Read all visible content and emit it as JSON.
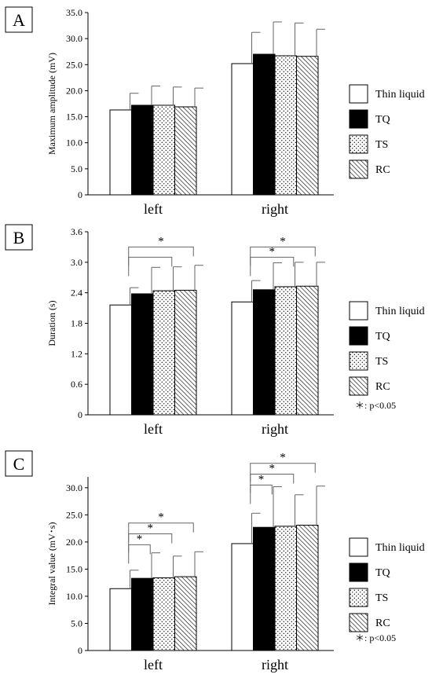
{
  "legend_patterns": {
    "Thin liquid": "white",
    "TQ": "black",
    "TS": "dots",
    "RC": "hatch"
  },
  "chart_data": [
    {
      "type": "bar",
      "panel_label": "A",
      "ylabel": "Maximum amplitude  (mV)",
      "categories": [
        "left",
        "right"
      ],
      "ylim": [
        0,
        35
      ],
      "yticks": [
        "0",
        "5.0",
        "10.0",
        "15.0",
        "20.0",
        "25.0",
        "30.0",
        "35.0"
      ],
      "yticks_values": [
        0,
        5,
        10,
        15,
        20,
        25,
        30,
        35
      ],
      "series": [
        {
          "name": "Thin liquid",
          "values": [
            16.3,
            25.2
          ],
          "errors": [
            3.2,
            6.0
          ]
        },
        {
          "name": "TQ",
          "values": [
            17.2,
            27.0
          ],
          "errors": [
            3.7,
            6.2
          ]
        },
        {
          "name": "TS",
          "values": [
            17.2,
            26.7
          ],
          "errors": [
            3.5,
            6.3
          ]
        },
        {
          "name": "RC",
          "values": [
            16.9,
            26.6
          ],
          "errors": [
            3.6,
            5.2
          ]
        }
      ],
      "legend": [
        "Thin liquid",
        "TQ",
        "TS",
        "RC"
      ],
      "legend_placement": "right",
      "significance": [],
      "note": ""
    },
    {
      "type": "bar",
      "panel_label": "B",
      "ylabel": "Duration (s)",
      "categories": [
        "left",
        "right"
      ],
      "ylim": [
        0,
        3.6
      ],
      "yticks": [
        "0",
        "0.6",
        "1.2",
        "1.8",
        "2.4",
        "3.0",
        "3.6"
      ],
      "yticks_values": [
        0,
        0.6,
        1.2,
        1.8,
        2.4,
        3.0,
        3.6
      ],
      "series": [
        {
          "name": "Thin liquid",
          "values": [
            2.16,
            2.22
          ],
          "errors": [
            0.34,
            0.42
          ]
        },
        {
          "name": "TQ",
          "values": [
            2.38,
            2.46
          ],
          "errors": [
            0.52,
            0.53
          ]
        },
        {
          "name": "TS",
          "values": [
            2.44,
            2.52
          ],
          "errors": [
            0.47,
            0.48
          ]
        },
        {
          "name": "RC",
          "values": [
            2.45,
            2.53
          ],
          "errors": [
            0.49,
            0.47
          ]
        }
      ],
      "legend": [
        "Thin liquid",
        "TQ",
        "TS",
        "RC"
      ],
      "legend_placement": "right",
      "significance": [
        {
          "category": 0,
          "from": 0,
          "to": 2,
          "level": 3.1,
          "label": ""
        },
        {
          "category": 0,
          "from": 0,
          "to": 3,
          "level": 3.3,
          "label": "*"
        },
        {
          "category": 1,
          "from": 0,
          "to": 2,
          "level": 3.1,
          "label": "*"
        },
        {
          "category": 1,
          "from": 0,
          "to": 3,
          "level": 3.3,
          "label": "*"
        }
      ],
      "note": "＊: p<0.05"
    },
    {
      "type": "bar",
      "panel_label": "C",
      "ylabel": "Integral value (mV･s)",
      "categories": [
        "left",
        "right"
      ],
      "ylim": [
        0,
        32
      ],
      "yticks": [
        "0",
        "5.0",
        "10.0",
        "15.0",
        "20.0",
        "25.0",
        "30.0"
      ],
      "yticks_values": [
        0,
        5,
        10,
        15,
        20,
        25,
        30
      ],
      "series": [
        {
          "name": "Thin liquid",
          "values": [
            11.4,
            19.7
          ],
          "errors": [
            3.4,
            5.6
          ]
        },
        {
          "name": "TQ",
          "values": [
            13.3,
            22.7
          ],
          "errors": [
            4.7,
            7.5
          ]
        },
        {
          "name": "TS",
          "values": [
            13.4,
            22.9
          ],
          "errors": [
            4.0,
            5.8
          ]
        },
        {
          "name": "RC",
          "values": [
            13.6,
            23.1
          ],
          "errors": [
            4.6,
            7.2
          ]
        }
      ],
      "legend": [
        "Thin liquid",
        "TQ",
        "TS",
        "RC"
      ],
      "legend_placement": "right",
      "significance": [
        {
          "category": 0,
          "from": 0,
          "to": 1,
          "level": 19.5,
          "label": "*"
        },
        {
          "category": 0,
          "from": 0,
          "to": 2,
          "level": 21.5,
          "label": "*"
        },
        {
          "category": 0,
          "from": 0,
          "to": 3,
          "level": 23.5,
          "label": "*"
        },
        {
          "category": 1,
          "from": 0,
          "to": 1,
          "level": 30.5,
          "label": "*"
        },
        {
          "category": 1,
          "from": 0,
          "to": 2,
          "level": 32.5,
          "label": "*"
        },
        {
          "category": 1,
          "from": 0,
          "to": 3,
          "level": 34.5,
          "label": "*"
        }
      ],
      "note": "＊: p<0.05"
    }
  ]
}
